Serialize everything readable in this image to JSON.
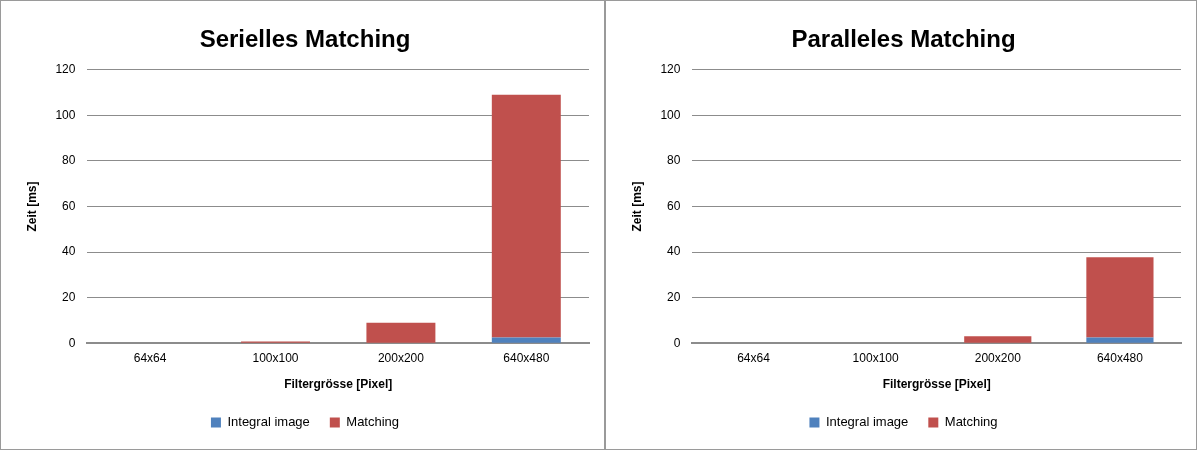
{
  "chart_data": [
    {
      "type": "bar",
      "title": "Serielles Matching",
      "xlabel": "Filtergrösse [Pixel]",
      "ylabel": "Zeit [ms]",
      "categories": [
        "64x64",
        "100x100",
        "200x200",
        "640x480"
      ],
      "stacked": true,
      "ylim": [
        0,
        120
      ],
      "yticks": [
        0,
        20,
        40,
        60,
        80,
        100,
        120
      ],
      "grid": "y",
      "legend": "bottom",
      "series": [
        {
          "name": "Integral image",
          "color": "#4f81bd",
          "values": [
            0,
            0,
            0,
            2.5
          ]
        },
        {
          "name": "Matching",
          "color": "#c0504d",
          "values": [
            0,
            0.8,
            9,
            106.5
          ]
        }
      ]
    },
    {
      "type": "bar",
      "title": "Paralleles Matching",
      "xlabel": "Filtergrösse [Pixel]",
      "ylabel": "Zeit [ms]",
      "categories": [
        "64x64",
        "100x100",
        "200x200",
        "640x480"
      ],
      "stacked": true,
      "ylim": [
        0,
        120
      ],
      "yticks": [
        0,
        20,
        40,
        60,
        80,
        100,
        120
      ],
      "grid": "y",
      "legend": "bottom",
      "series": [
        {
          "name": "Integral image",
          "color": "#4f81bd",
          "values": [
            0,
            0,
            0,
            2.5
          ]
        },
        {
          "name": "Matching",
          "color": "#c0504d",
          "values": [
            0,
            0,
            3.1,
            35.2
          ]
        }
      ]
    }
  ]
}
